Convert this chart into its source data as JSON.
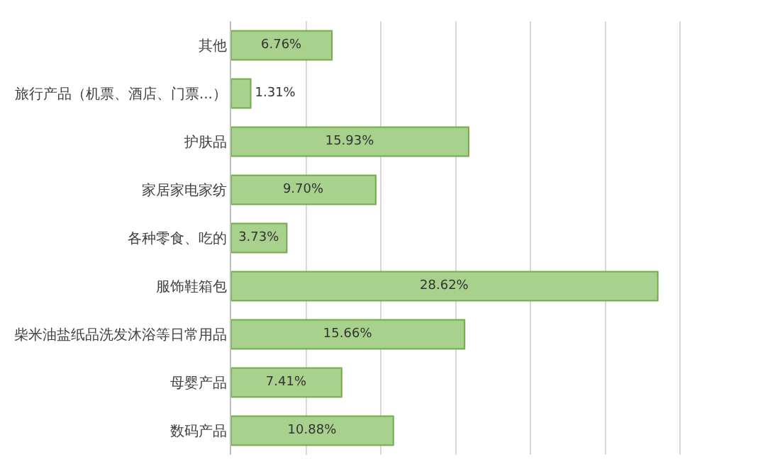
{
  "chart_data": {
    "type": "bar",
    "orientation": "horizontal",
    "categories": [
      "其他",
      "旅行产品（机票、酒店、门票...）",
      "护肤品",
      "家居家电家纺",
      "各种零食、吃的",
      "服饰鞋箱包",
      "柴米油盐纸品洗发沐浴等日常用品",
      "母婴产品",
      "数码产品"
    ],
    "values": [
      6.76,
      1.31,
      15.93,
      9.7,
      3.73,
      28.62,
      15.66,
      7.41,
      10.88
    ],
    "value_labels": [
      "6.76%",
      "1.31%",
      "15.93%",
      "9.70%",
      "3.73%",
      "28.62%",
      "15.66%",
      "7.41%",
      "10.88%"
    ],
    "color": "#a9d18e",
    "grid": "x",
    "tick_labels": "y"
  }
}
